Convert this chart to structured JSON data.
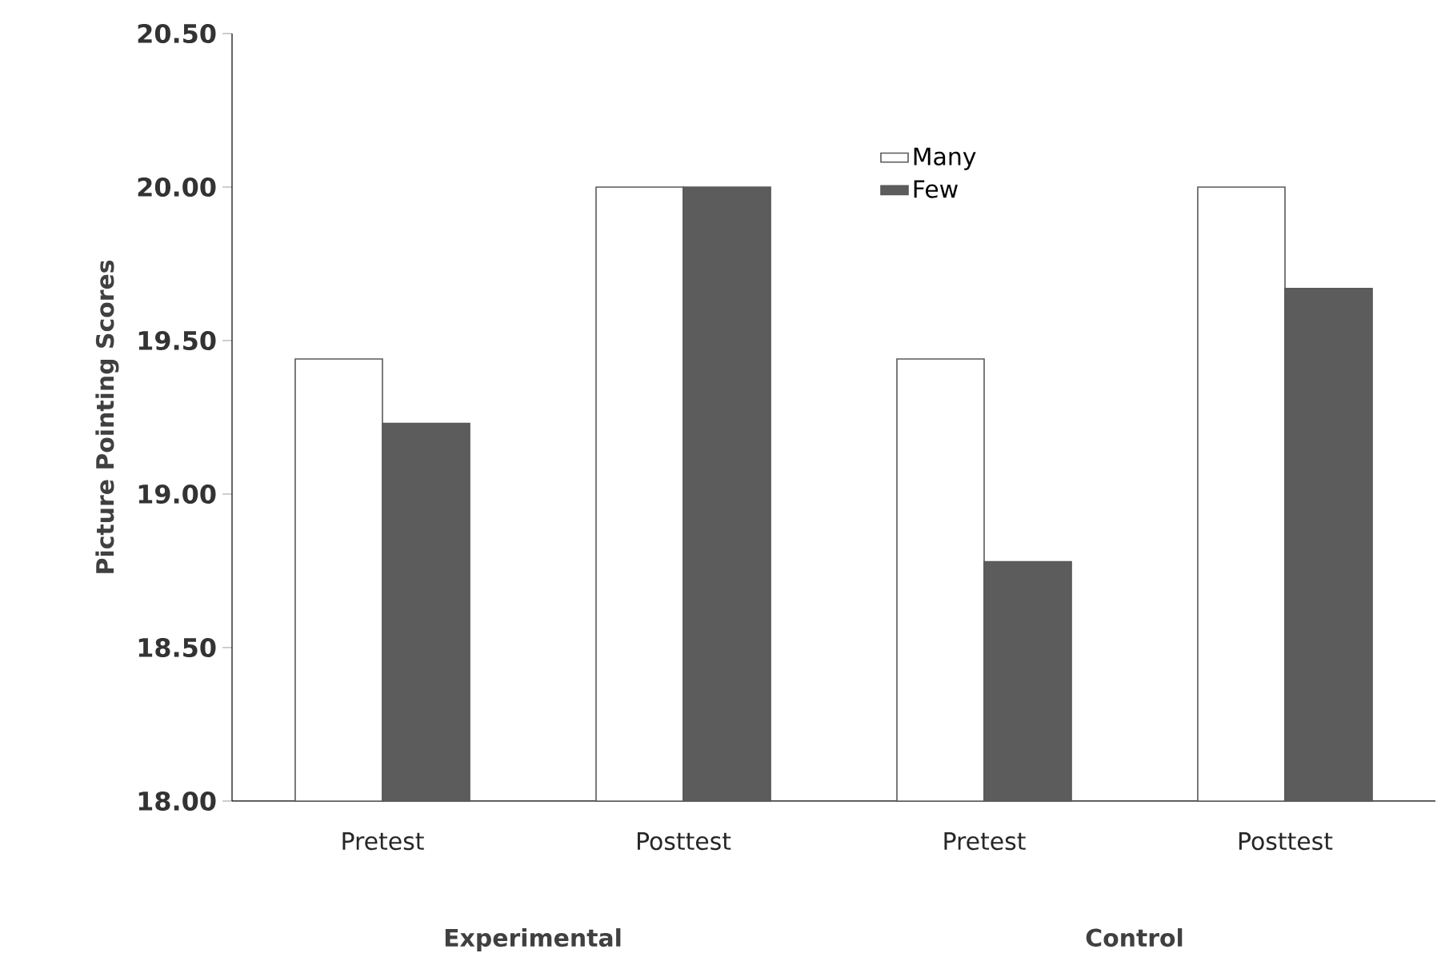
{
  "chart_data": {
    "type": "bar",
    "ylabel": "Picture Pointing Scores",
    "categories": [
      "Pretest",
      "Posttest",
      "Pretest",
      "Posttest"
    ],
    "annotations": [
      "Experimental",
      "Control"
    ],
    "series": [
      {
        "name": "Many",
        "color": "#ffffff",
        "values": [
          19.44,
          20.0,
          19.44,
          20.0
        ]
      },
      {
        "name": "Few",
        "color": "#5c5c5c",
        "values": [
          19.23,
          20.0,
          18.78,
          19.67
        ]
      }
    ],
    "ylim": [
      18,
      20.5
    ],
    "yticks": [
      {
        "value": 18,
        "label": "18.00"
      },
      {
        "value": 18.5,
        "label": "18.50"
      },
      {
        "value": 19,
        "label": "19.00"
      },
      {
        "value": 19.5,
        "label": "19.50"
      },
      {
        "value": 20,
        "label": "20.00"
      },
      {
        "value": 20.5,
        "label": "20.50"
      }
    ],
    "legend": "top"
  }
}
